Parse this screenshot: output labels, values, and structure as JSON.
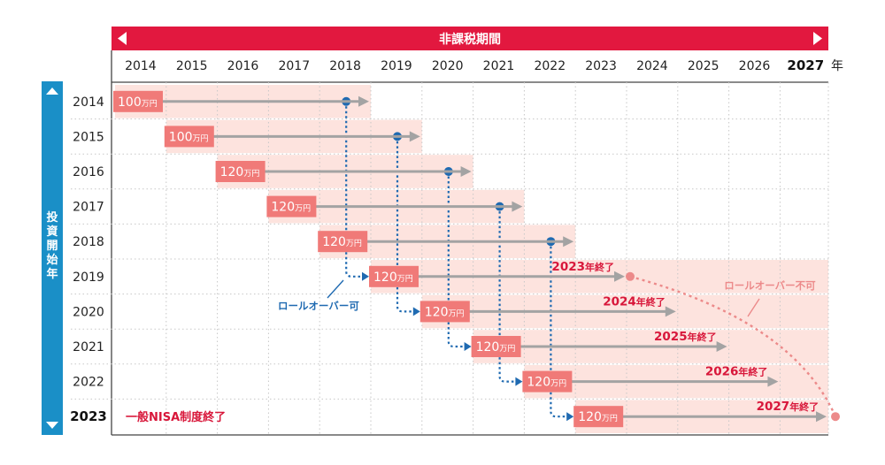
{
  "header": {
    "period_label": "非課税期間",
    "columns": [
      "2014",
      "2015",
      "2016",
      "2017",
      "2018",
      "2019",
      "2020",
      "2021",
      "2022",
      "2023",
      "2024",
      "2025",
      "2026",
      "2027"
    ],
    "year_suffix": "年"
  },
  "sidebar": {
    "label": "投資開始年",
    "up_arrow": "triangle-up-icon",
    "down_arrow": "triangle-down-icon"
  },
  "rows": [
    {
      "year": "2014",
      "amount": "100",
      "unit": "万円",
      "end_label": "",
      "end_suffix": ""
    },
    {
      "year": "2015",
      "amount": "100",
      "unit": "万円",
      "end_label": "",
      "end_suffix": ""
    },
    {
      "year": "2016",
      "amount": "120",
      "unit": "万円",
      "end_label": "",
      "end_suffix": ""
    },
    {
      "year": "2017",
      "amount": "120",
      "unit": "万円",
      "end_label": "",
      "end_suffix": ""
    },
    {
      "year": "2018",
      "amount": "120",
      "unit": "万円",
      "end_label": "",
      "end_suffix": ""
    },
    {
      "year": "2019",
      "amount": "120",
      "unit": "万円",
      "end_label": "2023",
      "end_suffix": "年終了"
    },
    {
      "year": "2020",
      "amount": "120",
      "unit": "万円",
      "end_label": "2024",
      "end_suffix": "年終了"
    },
    {
      "year": "2021",
      "amount": "120",
      "unit": "万円",
      "end_label": "2025",
      "end_suffix": "年終了"
    },
    {
      "year": "2022",
      "amount": "120",
      "unit": "万円",
      "end_label": "2026",
      "end_suffix": "年終了"
    },
    {
      "year": "2023",
      "amount": "120",
      "unit": "万円",
      "end_label": "2027",
      "end_suffix": "年終了"
    }
  ],
  "notes": {
    "rollover_ok": "ロールオーバー可",
    "rollover_ng": "ロールオーバー不可",
    "nisa_end": "一般NISA制度終了"
  },
  "colors": {
    "header_red": "#e2183f",
    "sidebar_blue": "#1a8fc7",
    "badge_pink": "#f07a78",
    "band_pink": "#fde3de",
    "arrow_gray": "#a3a3a3",
    "dot_blue": "#1f6ab1",
    "end_red": "#d8173a",
    "fade_red": "#ec8a8a"
  }
}
